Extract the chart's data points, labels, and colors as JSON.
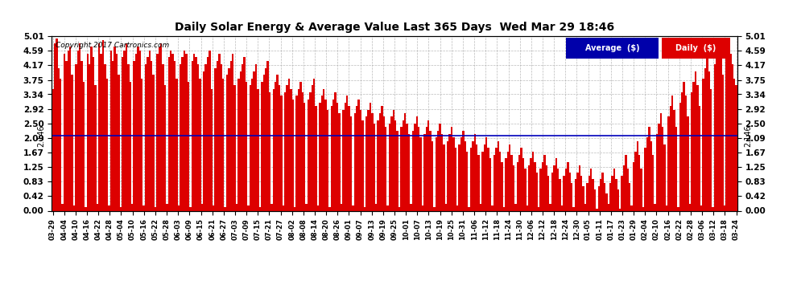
{
  "title": "Daily Solar Energy & Average Value Last 365 Days  Wed Mar 29 18:46",
  "copyright": "Copyright 2017 Cartronics.com",
  "average_value": 2.146,
  "avg_label": "2.146",
  "yticks": [
    0.0,
    0.42,
    0.83,
    1.25,
    1.67,
    2.09,
    2.5,
    2.92,
    3.34,
    3.75,
    4.17,
    4.59,
    5.01
  ],
  "ylim": [
    0.0,
    5.01
  ],
  "bar_color": "#dd0000",
  "avg_line_color": "#0000bb",
  "background_color": "#ffffff",
  "grid_color": "#aaaaaa",
  "legend_avg_bg": "#0000aa",
  "legend_daily_bg": "#dd0000",
  "xtick_labels": [
    "03-29",
    "04-04",
    "04-10",
    "04-16",
    "04-22",
    "04-28",
    "05-04",
    "05-10",
    "05-16",
    "05-22",
    "05-28",
    "06-03",
    "06-09",
    "06-15",
    "06-21",
    "06-27",
    "07-03",
    "07-09",
    "07-15",
    "07-21",
    "07-27",
    "08-02",
    "08-08",
    "08-14",
    "08-20",
    "08-26",
    "09-01",
    "09-07",
    "09-13",
    "09-19",
    "09-25",
    "10-01",
    "10-07",
    "10-13",
    "10-19",
    "10-25",
    "10-31",
    "11-06",
    "11-12",
    "11-18",
    "11-24",
    "11-30",
    "12-06",
    "12-12",
    "12-18",
    "12-24",
    "12-30",
    "01-05",
    "01-11",
    "01-17",
    "01-23",
    "01-29",
    "02-04",
    "02-10",
    "02-16",
    "02-22",
    "02-28",
    "03-06",
    "03-12",
    "03-18",
    "03-24"
  ],
  "daily_values": [
    3.5,
    4.8,
    4.95,
    4.1,
    3.8,
    0.2,
    4.5,
    4.3,
    4.6,
    4.7,
    3.9,
    0.15,
    4.2,
    4.6,
    4.8,
    4.3,
    3.7,
    0.1,
    4.5,
    4.2,
    4.7,
    4.4,
    3.6,
    0.2,
    4.8,
    4.5,
    4.9,
    4.2,
    3.8,
    0.15,
    4.6,
    4.3,
    4.7,
    4.5,
    3.9,
    0.1,
    4.4,
    4.6,
    4.8,
    4.2,
    3.7,
    0.2,
    4.3,
    4.5,
    4.7,
    4.6,
    3.8,
    0.15,
    4.2,
    4.4,
    4.6,
    4.3,
    3.9,
    0.1,
    4.5,
    4.7,
    4.8,
    4.2,
    3.6,
    0.2,
    4.4,
    4.6,
    4.5,
    4.3,
    3.8,
    0.15,
    4.2,
    4.4,
    4.6,
    4.5,
    3.7,
    0.1,
    4.3,
    4.5,
    4.4,
    4.2,
    3.8,
    0.2,
    4.0,
    4.2,
    4.4,
    4.6,
    3.5,
    0.15,
    4.1,
    4.3,
    4.5,
    4.2,
    3.8,
    0.1,
    3.9,
    4.1,
    4.3,
    4.5,
    3.6,
    0.2,
    3.8,
    4.0,
    4.2,
    4.4,
    3.7,
    0.15,
    3.6,
    3.8,
    4.0,
    4.2,
    3.5,
    0.1,
    3.7,
    3.9,
    4.1,
    4.3,
    3.4,
    0.2,
    3.5,
    3.7,
    3.9,
    3.6,
    3.3,
    0.15,
    3.4,
    3.6,
    3.8,
    3.5,
    3.2,
    0.1,
    3.3,
    3.5,
    3.7,
    3.4,
    3.1,
    0.2,
    3.2,
    3.4,
    3.6,
    3.8,
    3.0,
    0.15,
    3.1,
    3.3,
    3.5,
    3.2,
    2.9,
    0.1,
    3.0,
    3.2,
    3.4,
    3.1,
    2.8,
    0.2,
    2.9,
    3.1,
    3.3,
    3.0,
    2.7,
    0.15,
    2.8,
    3.0,
    3.2,
    2.9,
    2.6,
    0.1,
    2.7,
    2.9,
    3.1,
    2.8,
    2.5,
    0.2,
    2.6,
    2.8,
    3.0,
    2.7,
    2.4,
    0.15,
    2.5,
    2.7,
    2.9,
    2.6,
    2.3,
    0.1,
    2.4,
    2.6,
    2.8,
    2.5,
    2.2,
    0.2,
    2.3,
    2.5,
    2.7,
    2.4,
    2.1,
    0.15,
    2.2,
    2.4,
    2.6,
    2.3,
    2.0,
    0.1,
    2.1,
    2.3,
    2.5,
    2.2,
    1.9,
    0.2,
    2.0,
    2.2,
    2.4,
    2.1,
    1.8,
    0.15,
    1.9,
    2.1,
    2.3,
    2.0,
    1.7,
    0.1,
    1.8,
    2.0,
    2.2,
    1.9,
    1.6,
    0.2,
    1.7,
    1.9,
    2.1,
    1.8,
    1.5,
    0.15,
    1.6,
    1.8,
    2.0,
    1.7,
    1.4,
    0.1,
    1.5,
    1.7,
    1.9,
    1.6,
    1.3,
    0.2,
    1.4,
    1.6,
    1.8,
    1.5,
    1.2,
    0.15,
    1.3,
    1.5,
    1.7,
    1.4,
    1.1,
    0.1,
    1.2,
    1.4,
    1.6,
    1.3,
    1.0,
    0.2,
    1.1,
    1.3,
    1.5,
    1.2,
    0.9,
    0.15,
    1.0,
    1.2,
    1.4,
    1.1,
    0.8,
    0.1,
    0.9,
    1.1,
    1.3,
    1.0,
    0.7,
    0.2,
    0.8,
    1.0,
    1.2,
    0.9,
    0.6,
    0.05,
    0.7,
    0.9,
    1.1,
    0.8,
    0.5,
    0.2,
    0.8,
    1.0,
    1.2,
    0.9,
    0.6,
    0.05,
    1.0,
    1.3,
    1.6,
    1.2,
    0.8,
    0.15,
    1.4,
    1.7,
    2.0,
    1.6,
    1.2,
    0.1,
    1.8,
    2.1,
    2.4,
    2.0,
    1.6,
    0.2,
    2.2,
    2.5,
    2.8,
    2.4,
    1.9,
    0.15,
    2.7,
    3.0,
    3.3,
    2.9,
    2.4,
    0.1,
    3.1,
    3.4,
    3.7,
    3.3,
    2.7,
    0.2,
    3.4,
    3.7,
    4.0,
    3.6,
    3.0,
    0.15,
    3.8,
    4.1,
    4.4,
    4.0,
    3.5,
    0.1,
    4.2,
    4.5,
    4.8,
    4.4,
    3.9,
    0.15,
    4.6,
    4.8,
    4.5,
    4.2,
    3.8,
    3.6
  ]
}
